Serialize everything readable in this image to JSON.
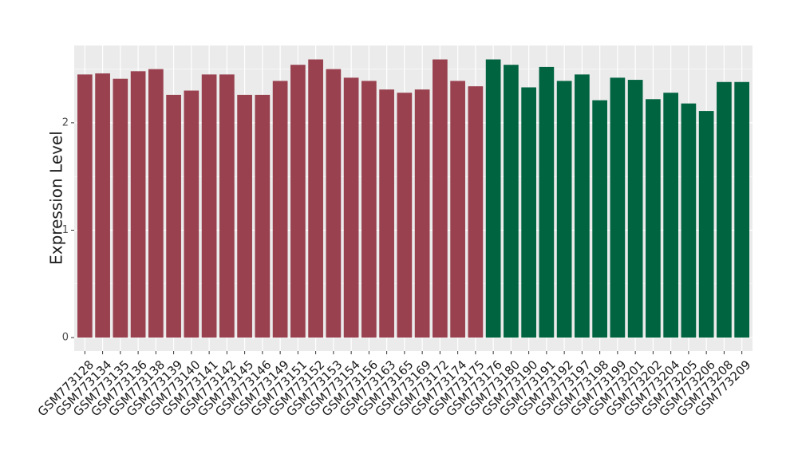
{
  "chart_data": {
    "type": "bar",
    "y_label": "Expression Level",
    "categories": [
      "GSM773128",
      "GSM773134",
      "GSM773135",
      "GSM773136",
      "GSM773138",
      "GSM773139",
      "GSM773140",
      "GSM773141",
      "GSM773142",
      "GSM773145",
      "GSM773146",
      "GSM773149",
      "GSM773151",
      "GSM773152",
      "GSM773153",
      "GSM773154",
      "GSM773156",
      "GSM773163",
      "GSM773165",
      "GSM773169",
      "GSM773172",
      "GSM773174",
      "GSM773175",
      "GSM773176",
      "GSM773180",
      "GSM773190",
      "GSM773191",
      "GSM773192",
      "GSM773197",
      "GSM773198",
      "GSM773199",
      "GSM773201",
      "GSM773202",
      "GSM773204",
      "GSM773205",
      "GSM773206",
      "GSM773208",
      "GSM773209"
    ],
    "values": [
      2.45,
      2.46,
      2.41,
      2.48,
      2.5,
      2.26,
      2.3,
      2.45,
      2.45,
      2.26,
      2.26,
      2.39,
      2.54,
      2.59,
      2.5,
      2.42,
      2.39,
      2.31,
      2.28,
      2.31,
      2.59,
      2.39,
      2.34,
      2.59,
      2.54,
      2.33,
      2.52,
      2.39,
      2.45,
      2.21,
      2.42,
      2.4,
      2.22,
      2.28,
      2.18,
      2.11,
      2.38,
      2.38
    ],
    "colors": [
      "#99414f",
      "#99414f",
      "#99414f",
      "#99414f",
      "#99414f",
      "#99414f",
      "#99414f",
      "#99414f",
      "#99414f",
      "#99414f",
      "#99414f",
      "#99414f",
      "#99414f",
      "#99414f",
      "#99414f",
      "#99414f",
      "#99414f",
      "#99414f",
      "#99414f",
      "#99414f",
      "#99414f",
      "#99414f",
      "#99414f",
      "#006441",
      "#006441",
      "#006441",
      "#006441",
      "#006441",
      "#006441",
      "#006441",
      "#006441",
      "#006441",
      "#006441",
      "#006441",
      "#006441",
      "#006441",
      "#006441",
      "#006441"
    ],
    "ylim": [
      -0.126,
      2.72
    ],
    "yticks": [
      0,
      1,
      2
    ],
    "grid": true
  }
}
